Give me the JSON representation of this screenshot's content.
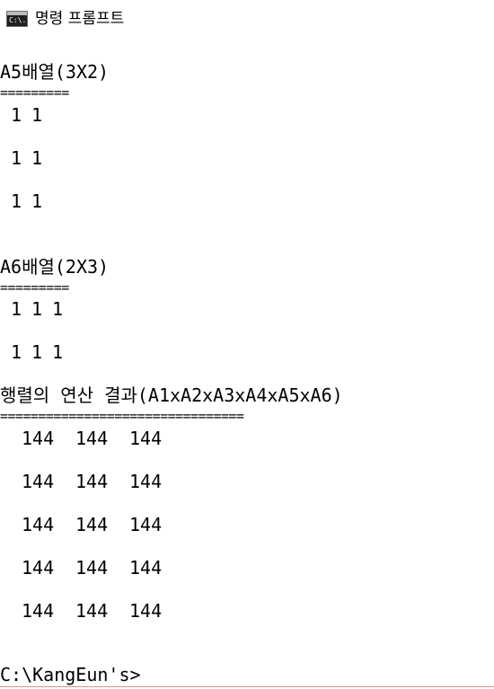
{
  "window": {
    "title": "명령 프롬프트",
    "icon": "cmd-icon",
    "icon_text": "C:\\."
  },
  "console": {
    "a5": {
      "header": "A5배열(3X2)",
      "rule": "=========",
      "rows": [
        [
          "1",
          "1"
        ],
        [
          "1",
          "1"
        ],
        [
          "1",
          "1"
        ]
      ]
    },
    "a6": {
      "header": "A6배열(2X3)",
      "rule": "=========",
      "rows": [
        [
          "1",
          "1",
          "1"
        ],
        [
          "1",
          "1",
          "1"
        ]
      ]
    },
    "result": {
      "header": "행렬의 연산 결과(A1xA2xA3xA4xA5xA6)",
      "rule": "================================",
      "rows": [
        [
          "144",
          "144",
          "144"
        ],
        [
          "144",
          "144",
          "144"
        ],
        [
          "144",
          "144",
          "144"
        ],
        [
          "144",
          "144",
          "144"
        ],
        [
          "144",
          "144",
          "144"
        ]
      ]
    },
    "prompt": "C:\\KangEun's>"
  }
}
